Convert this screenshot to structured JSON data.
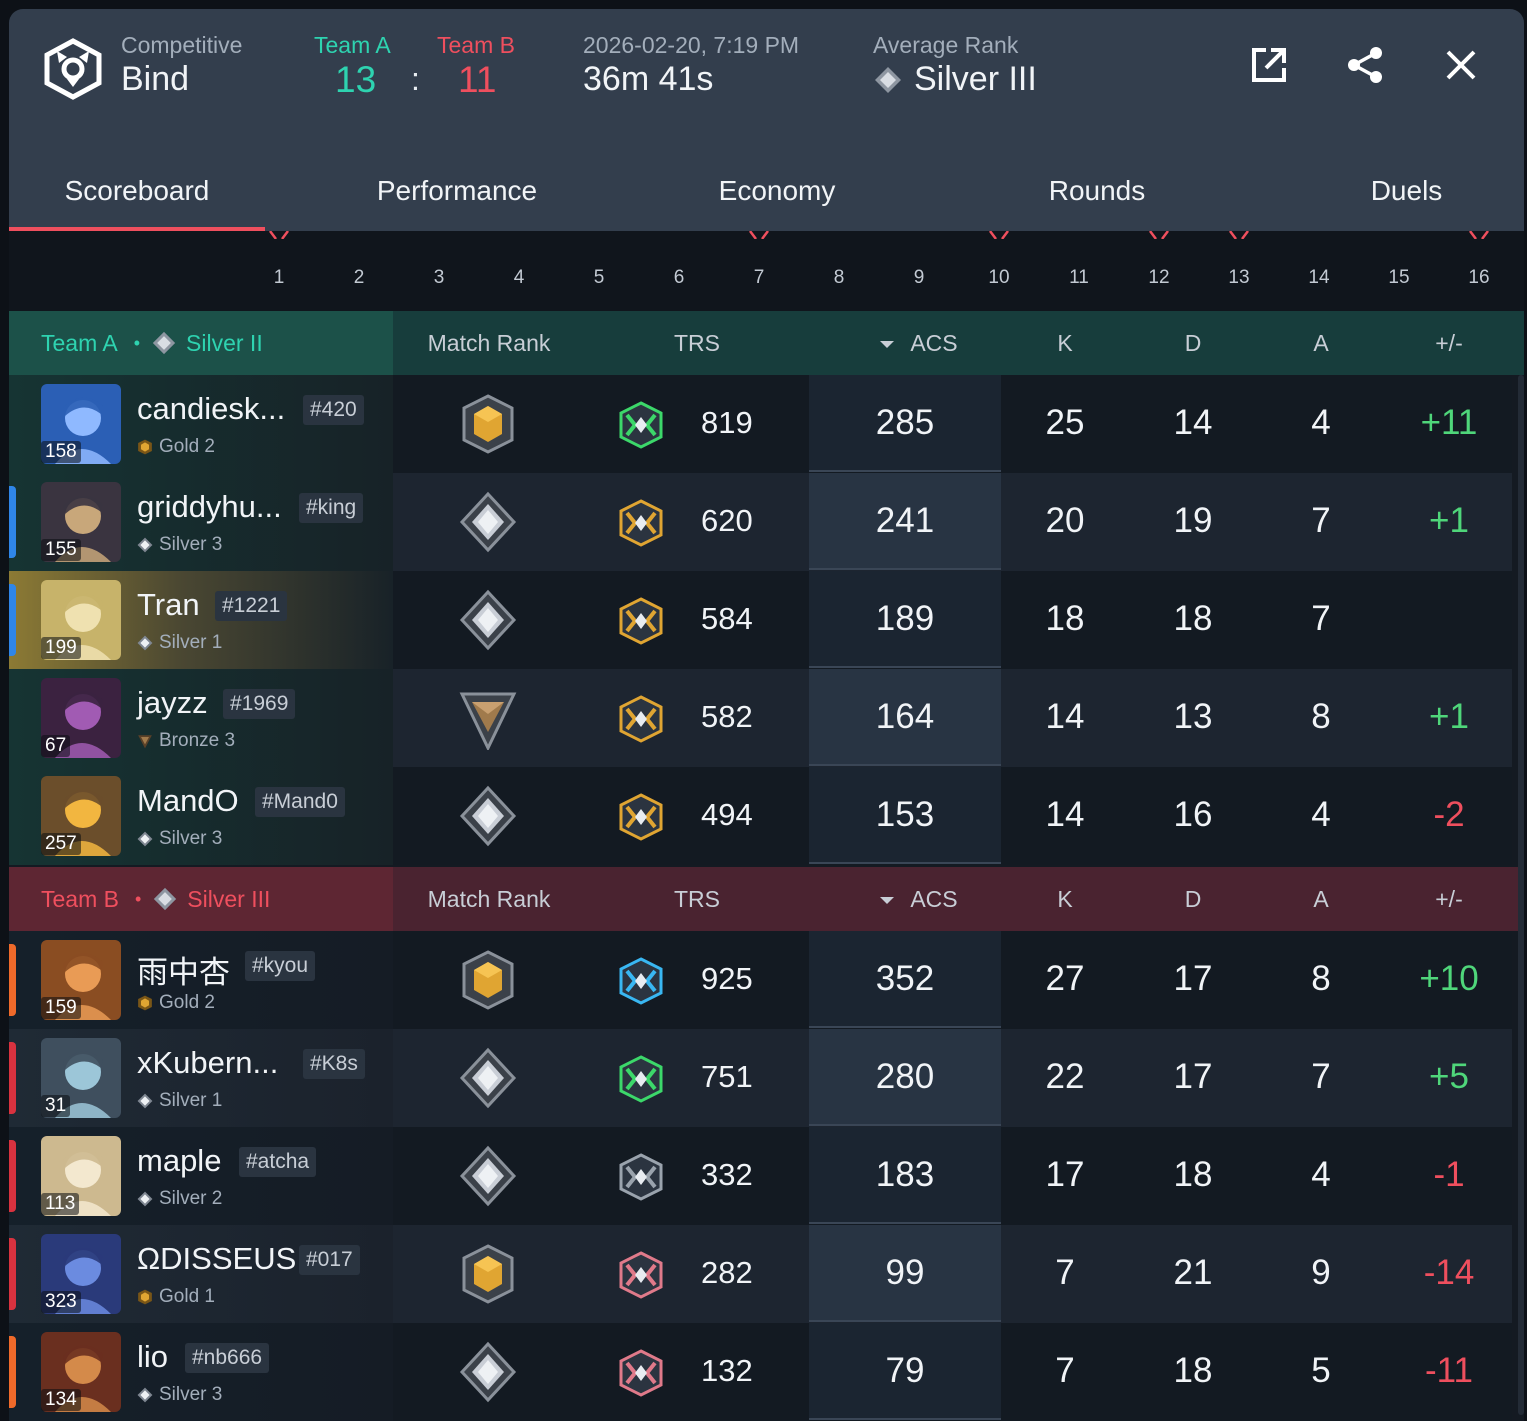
{
  "header": {
    "mode": "Competitive",
    "map": "Bind",
    "team_a_label": "Team A",
    "team_b_label": "Team B",
    "team_a_score": "13",
    "score_separator": ":",
    "team_b_score": "11",
    "date": "2026-02-20, 7:19 PM",
    "duration": "36m 41s",
    "avg_rank_label": "Average Rank",
    "avg_rank": "Silver III"
  },
  "tabs": [
    "Scoreboard",
    "Performance",
    "Economy",
    "Rounds",
    "Duels"
  ],
  "active_tab": "Scoreboard",
  "round_numbers": [
    "1",
    "2",
    "3",
    "4",
    "5",
    "6",
    "7",
    "8",
    "9",
    "10",
    "11",
    "12",
    "13",
    "14",
    "15",
    "16"
  ],
  "columns": {
    "match_rank": "Match Rank",
    "trs": "TRS",
    "acs": "ACS",
    "k": "K",
    "d": "D",
    "a": "A",
    "pm": "+/-"
  },
  "team_a": {
    "name": "Team A",
    "separator": "•",
    "rank": "Silver II",
    "players": [
      {
        "name": "candiesk...",
        "tag": "#420",
        "level": "158",
        "rank": "Gold 2",
        "trs": "819",
        "acs": "285",
        "k": "25",
        "d": "14",
        "a": "4",
        "pm": "+11"
      },
      {
        "name": "griddyhu...",
        "tag": "#king",
        "level": "155",
        "rank": "Silver 3",
        "trs": "620",
        "acs": "241",
        "k": "20",
        "d": "19",
        "a": "7",
        "pm": "+1"
      },
      {
        "name": "Tran",
        "tag": "#1221",
        "level": "199",
        "rank": "Silver 1",
        "trs": "584",
        "acs": "189",
        "k": "18",
        "d": "18",
        "a": "7",
        "pm": ""
      },
      {
        "name": "jayzz",
        "tag": "#1969",
        "level": "67",
        "rank": "Bronze 3",
        "trs": "582",
        "acs": "164",
        "k": "14",
        "d": "13",
        "a": "8",
        "pm": "+1"
      },
      {
        "name": "MandO",
        "tag": "#Mand0",
        "level": "257",
        "rank": "Silver 3",
        "trs": "494",
        "acs": "153",
        "k": "14",
        "d": "16",
        "a": "4",
        "pm": "-2"
      }
    ]
  },
  "team_b": {
    "name": "Team B",
    "separator": "•",
    "rank": "Silver III",
    "players": [
      {
        "name": "雨中杏",
        "tag": "#kyou",
        "level": "159",
        "rank": "Gold 2",
        "trs": "925",
        "acs": "352",
        "k": "27",
        "d": "17",
        "a": "8",
        "pm": "+10"
      },
      {
        "name": "xKubern...",
        "tag": "#K8s",
        "level": "31",
        "rank": "Silver 1",
        "trs": "751",
        "acs": "280",
        "k": "22",
        "d": "17",
        "a": "7",
        "pm": "+5"
      },
      {
        "name": "maple",
        "tag": "#atcha",
        "level": "113",
        "rank": "Silver 2",
        "trs": "332",
        "acs": "183",
        "k": "17",
        "d": "18",
        "a": "4",
        "pm": "-1"
      },
      {
        "name": "ΩDISSEUS",
        "tag": "#017",
        "level": "323",
        "rank": "Gold 1",
        "trs": "282",
        "acs": "99",
        "k": "7",
        "d": "21",
        "a": "9",
        "pm": "-14"
      },
      {
        "name": "lio",
        "tag": "#nb666",
        "level": "134",
        "rank": "Silver 3",
        "trs": "132",
        "acs": "79",
        "k": "7",
        "d": "18",
        "a": "5",
        "pm": "-11"
      }
    ]
  },
  "colors": {
    "team_a": "#2ed3b0",
    "team_b": "#ef4f5e",
    "positive": "#4fd67a",
    "negative": "#ef4f5e",
    "gold": "#e0a532",
    "silver": "#c9ced6",
    "bronze": "#a07a4c"
  },
  "icons": {
    "logo": "tracker-logo-icon",
    "open": "external-link-icon",
    "share": "share-icon",
    "close": "close-icon"
  }
}
